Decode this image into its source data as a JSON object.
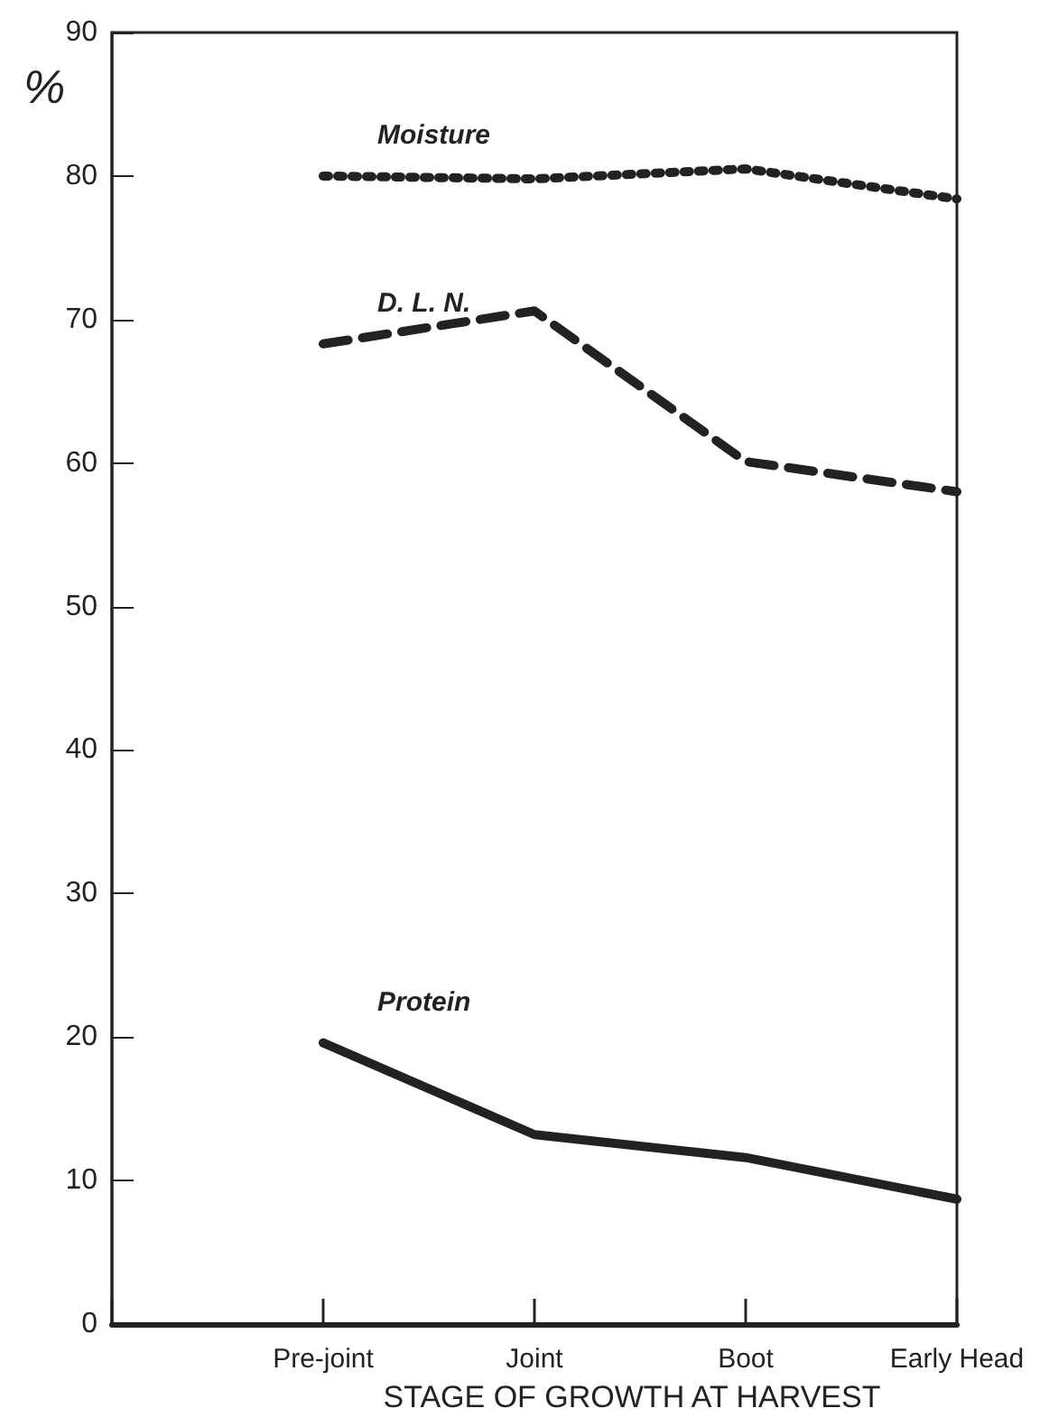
{
  "chart_data": {
    "type": "line",
    "ylabel": "%",
    "xlabel": "STAGE OF GROWTH AT HARVEST",
    "categories": [
      null,
      "Pre-joint",
      "Joint",
      "Boot",
      "Early Head"
    ],
    "series": [
      {
        "name": "Moisture",
        "color": "#222222",
        "line_style": "dotted",
        "values": [
          null,
          80,
          79.8,
          80.5,
          78.4
        ]
      },
      {
        "name": "D. L. N.",
        "color": "#222222",
        "line_style": "dashed",
        "values": [
          null,
          68.3,
          70.6,
          60.1,
          58
        ]
      },
      {
        "name": "Protein",
        "color": "#222222",
        "line_style": "solid",
        "values": [
          null,
          19.6,
          13.2,
          11.6,
          8.7
        ]
      }
    ],
    "ylim": [
      0,
      90
    ],
    "yticks": [
      0,
      10,
      20,
      30,
      40,
      50,
      60,
      70,
      80,
      90
    ],
    "grid": false,
    "legend": false,
    "marker": "none"
  }
}
